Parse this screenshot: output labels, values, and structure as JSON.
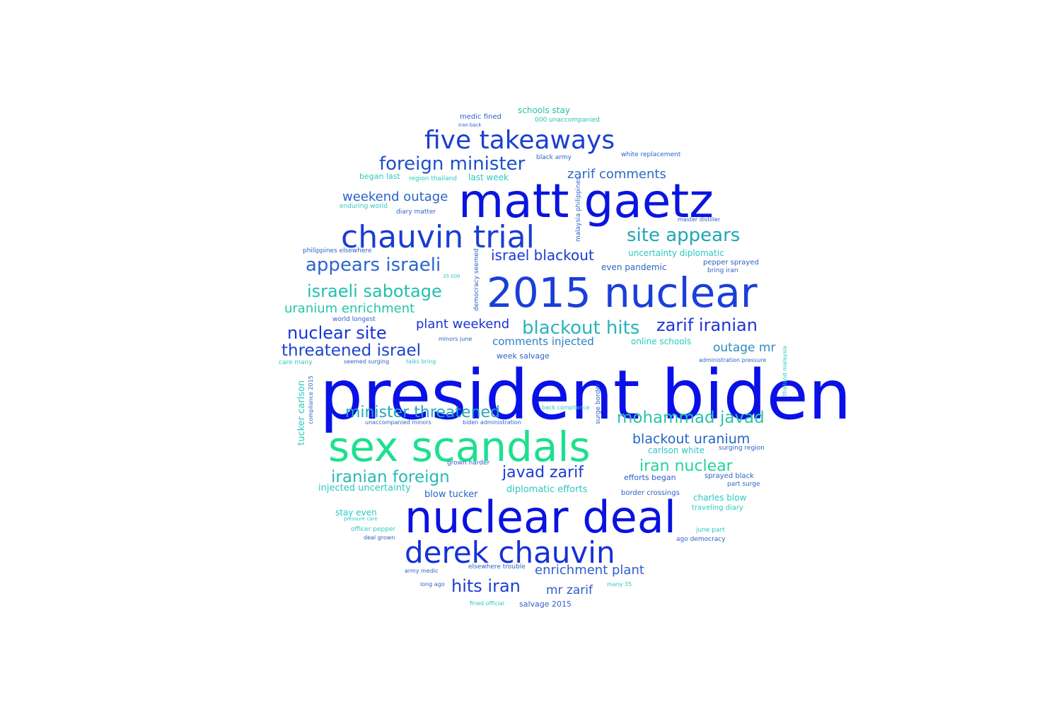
{
  "colors": {
    "deep_blue": "#0a10e8",
    "royal_blue": "#1538d8",
    "steel_blue": "#2f5fd0",
    "teal": "#1fa6b8",
    "aqua": "#2ac9c0",
    "mint": "#1de08e",
    "sea_green": "#27c3a6"
  },
  "words": [
    {
      "text": "president biden",
      "color": "#0a10e8"
    },
    {
      "text": "matt gaetz",
      "color": "#0a14e0"
    },
    {
      "text": "2015 nuclear",
      "color": "#1a3fd8"
    },
    {
      "text": "sex scandals",
      "color": "#1de08e"
    },
    {
      "text": "nuclear deal",
      "color": "#0a12e0"
    },
    {
      "text": "derek chauvin",
      "color": "#1530d8"
    },
    {
      "text": "chauvin trial",
      "color": "#1a3cd2"
    },
    {
      "text": "five takeaways",
      "color": "#1a40d0"
    },
    {
      "text": "foreign minister",
      "color": "#1d4fc9"
    },
    {
      "text": "site appears",
      "color": "#1fa6b8"
    },
    {
      "text": "appears israeli",
      "color": "#2c66cc"
    },
    {
      "text": "israeli sabotage",
      "color": "#23bfae"
    },
    {
      "text": "blackout hits",
      "color": "#28b3bb"
    },
    {
      "text": "zarif iranian",
      "color": "#1d35d6"
    },
    {
      "text": "nuclear site",
      "color": "#1635d9"
    },
    {
      "text": "threatened israel",
      "color": "#1c44cf"
    },
    {
      "text": "minister threatened",
      "color": "#22a8bb"
    },
    {
      "text": "mohammad javad",
      "color": "#28c5a8"
    },
    {
      "text": "iranian foreign",
      "color": "#29b8b5"
    },
    {
      "text": "iran nuclear",
      "color": "#21d59d"
    },
    {
      "text": "javad zarif",
      "color": "#1b3cd2"
    },
    {
      "text": "hits iran",
      "color": "#1c3fd0"
    },
    {
      "text": "blackout uranium",
      "color": "#2266c6"
    },
    {
      "text": "israel blackout",
      "color": "#1a3ad4"
    },
    {
      "text": "weekend outage",
      "color": "#2a62c9"
    },
    {
      "text": "uranium enrichment",
      "color": "#25c4a9"
    },
    {
      "text": "plant weekend",
      "color": "#1a33d6"
    },
    {
      "text": "zarif comments",
      "color": "#2d6ac4"
    },
    {
      "text": "outage mr",
      "color": "#2c8ac1"
    },
    {
      "text": "enrichment plant",
      "color": "#2c5fcc"
    },
    {
      "text": "mr zarif",
      "color": "#2c5ac9"
    },
    {
      "text": "comments injected",
      "color": "#2b7fc4"
    },
    {
      "text": "schools stay",
      "color": "#28c3a8"
    },
    {
      "text": "medic fined",
      "color": "#2d62c9"
    },
    {
      "text": "000 unaccompanied",
      "color": "#26c0ab"
    },
    {
      "text": "began last",
      "color": "#2ac9c0"
    },
    {
      "text": "last week",
      "color": "#2ac9c0"
    },
    {
      "text": "region thailand",
      "color": "#2ac9c0"
    },
    {
      "text": "enduring world",
      "color": "#2ac9c0"
    },
    {
      "text": "diary matter",
      "color": "#2d62c9"
    },
    {
      "text": "black army",
      "color": "#2d62c9"
    },
    {
      "text": "white replacement",
      "color": "#2d62c9"
    },
    {
      "text": "uncertainty diplomatic",
      "color": "#2ac9c0"
    },
    {
      "text": "even pandemic",
      "color": "#2d62c9"
    },
    {
      "text": "pepper sprayed",
      "color": "#2d62c9"
    },
    {
      "text": "bring iran",
      "color": "#2d62c9"
    },
    {
      "text": "master distiller",
      "color": "#2d62c9"
    },
    {
      "text": "philippines elsewhere",
      "color": "#2d62c9"
    },
    {
      "text": "online schools",
      "color": "#2ac9c0"
    },
    {
      "text": "week salvage",
      "color": "#2d62c9"
    },
    {
      "text": "seemed surging",
      "color": "#2d62c9"
    },
    {
      "text": "talks bring",
      "color": "#2ac9c0"
    },
    {
      "text": "care many",
      "color": "#2ac9c0"
    },
    {
      "text": "world longest",
      "color": "#2d62c9"
    },
    {
      "text": "minors june",
      "color": "#2d62c9"
    },
    {
      "text": "administration pressure",
      "color": "#2d62c9"
    },
    {
      "text": "back compliance",
      "color": "#2ac9c0"
    },
    {
      "text": "unaccompanied minors",
      "color": "#2d62c9"
    },
    {
      "text": "biden administration",
      "color": "#2d62c9"
    },
    {
      "text": "carlson white",
      "color": "#2ac9c0"
    },
    {
      "text": "surging region",
      "color": "#2d62c9"
    },
    {
      "text": "grown harder",
      "color": "#2d62c9"
    },
    {
      "text": "injected uncertainty",
      "color": "#2ac9c0"
    },
    {
      "text": "blow tucker",
      "color": "#2d62c9"
    },
    {
      "text": "diplomatic efforts",
      "color": "#2ac9c0"
    },
    {
      "text": "efforts began",
      "color": "#2d62c9"
    },
    {
      "text": "sprayed black",
      "color": "#2d62c9"
    },
    {
      "text": "part surge",
      "color": "#2d62c9"
    },
    {
      "text": "border crossings",
      "color": "#2d62c9"
    },
    {
      "text": "charles blow",
      "color": "#2ac9c0"
    },
    {
      "text": "traveling diary",
      "color": "#2ac9c0"
    },
    {
      "text": "stay even",
      "color": "#2ac9c0"
    },
    {
      "text": "officer pepper",
      "color": "#2ac9c0"
    },
    {
      "text": "deal grown",
      "color": "#2d62c9"
    },
    {
      "text": "ago democracy",
      "color": "#2d62c9"
    },
    {
      "text": "june part",
      "color": "#2ac9c0"
    },
    {
      "text": "army medic",
      "color": "#2d62c9"
    },
    {
      "text": "elsewhere trouble",
      "color": "#2d62c9"
    },
    {
      "text": "long ago",
      "color": "#2d62c9"
    },
    {
      "text": "many 35",
      "color": "#2ac9c0"
    },
    {
      "text": "fined official",
      "color": "#2ac9c0"
    },
    {
      "text": "salvage 2015",
      "color": "#2d62c9"
    },
    {
      "text": "tucker carlson",
      "color": "#2ac9c0"
    },
    {
      "text": "surge border",
      "color": "#2d62c9"
    },
    {
      "text": "democracy seemed",
      "color": "#2d62c9"
    },
    {
      "text": "malaysia philippines",
      "color": "#2d62c9"
    },
    {
      "text": "compliance 2015",
      "color": "#2d62c9"
    },
    {
      "text": "thailand malaysia",
      "color": "#2ac9c0"
    },
    {
      "text": "35 000",
      "color": "#2ac9c0"
    },
    {
      "text": "iran back",
      "color": "#2d62c9"
    },
    {
      "text": "pressure care",
      "color": "#2ac9c0"
    }
  ]
}
